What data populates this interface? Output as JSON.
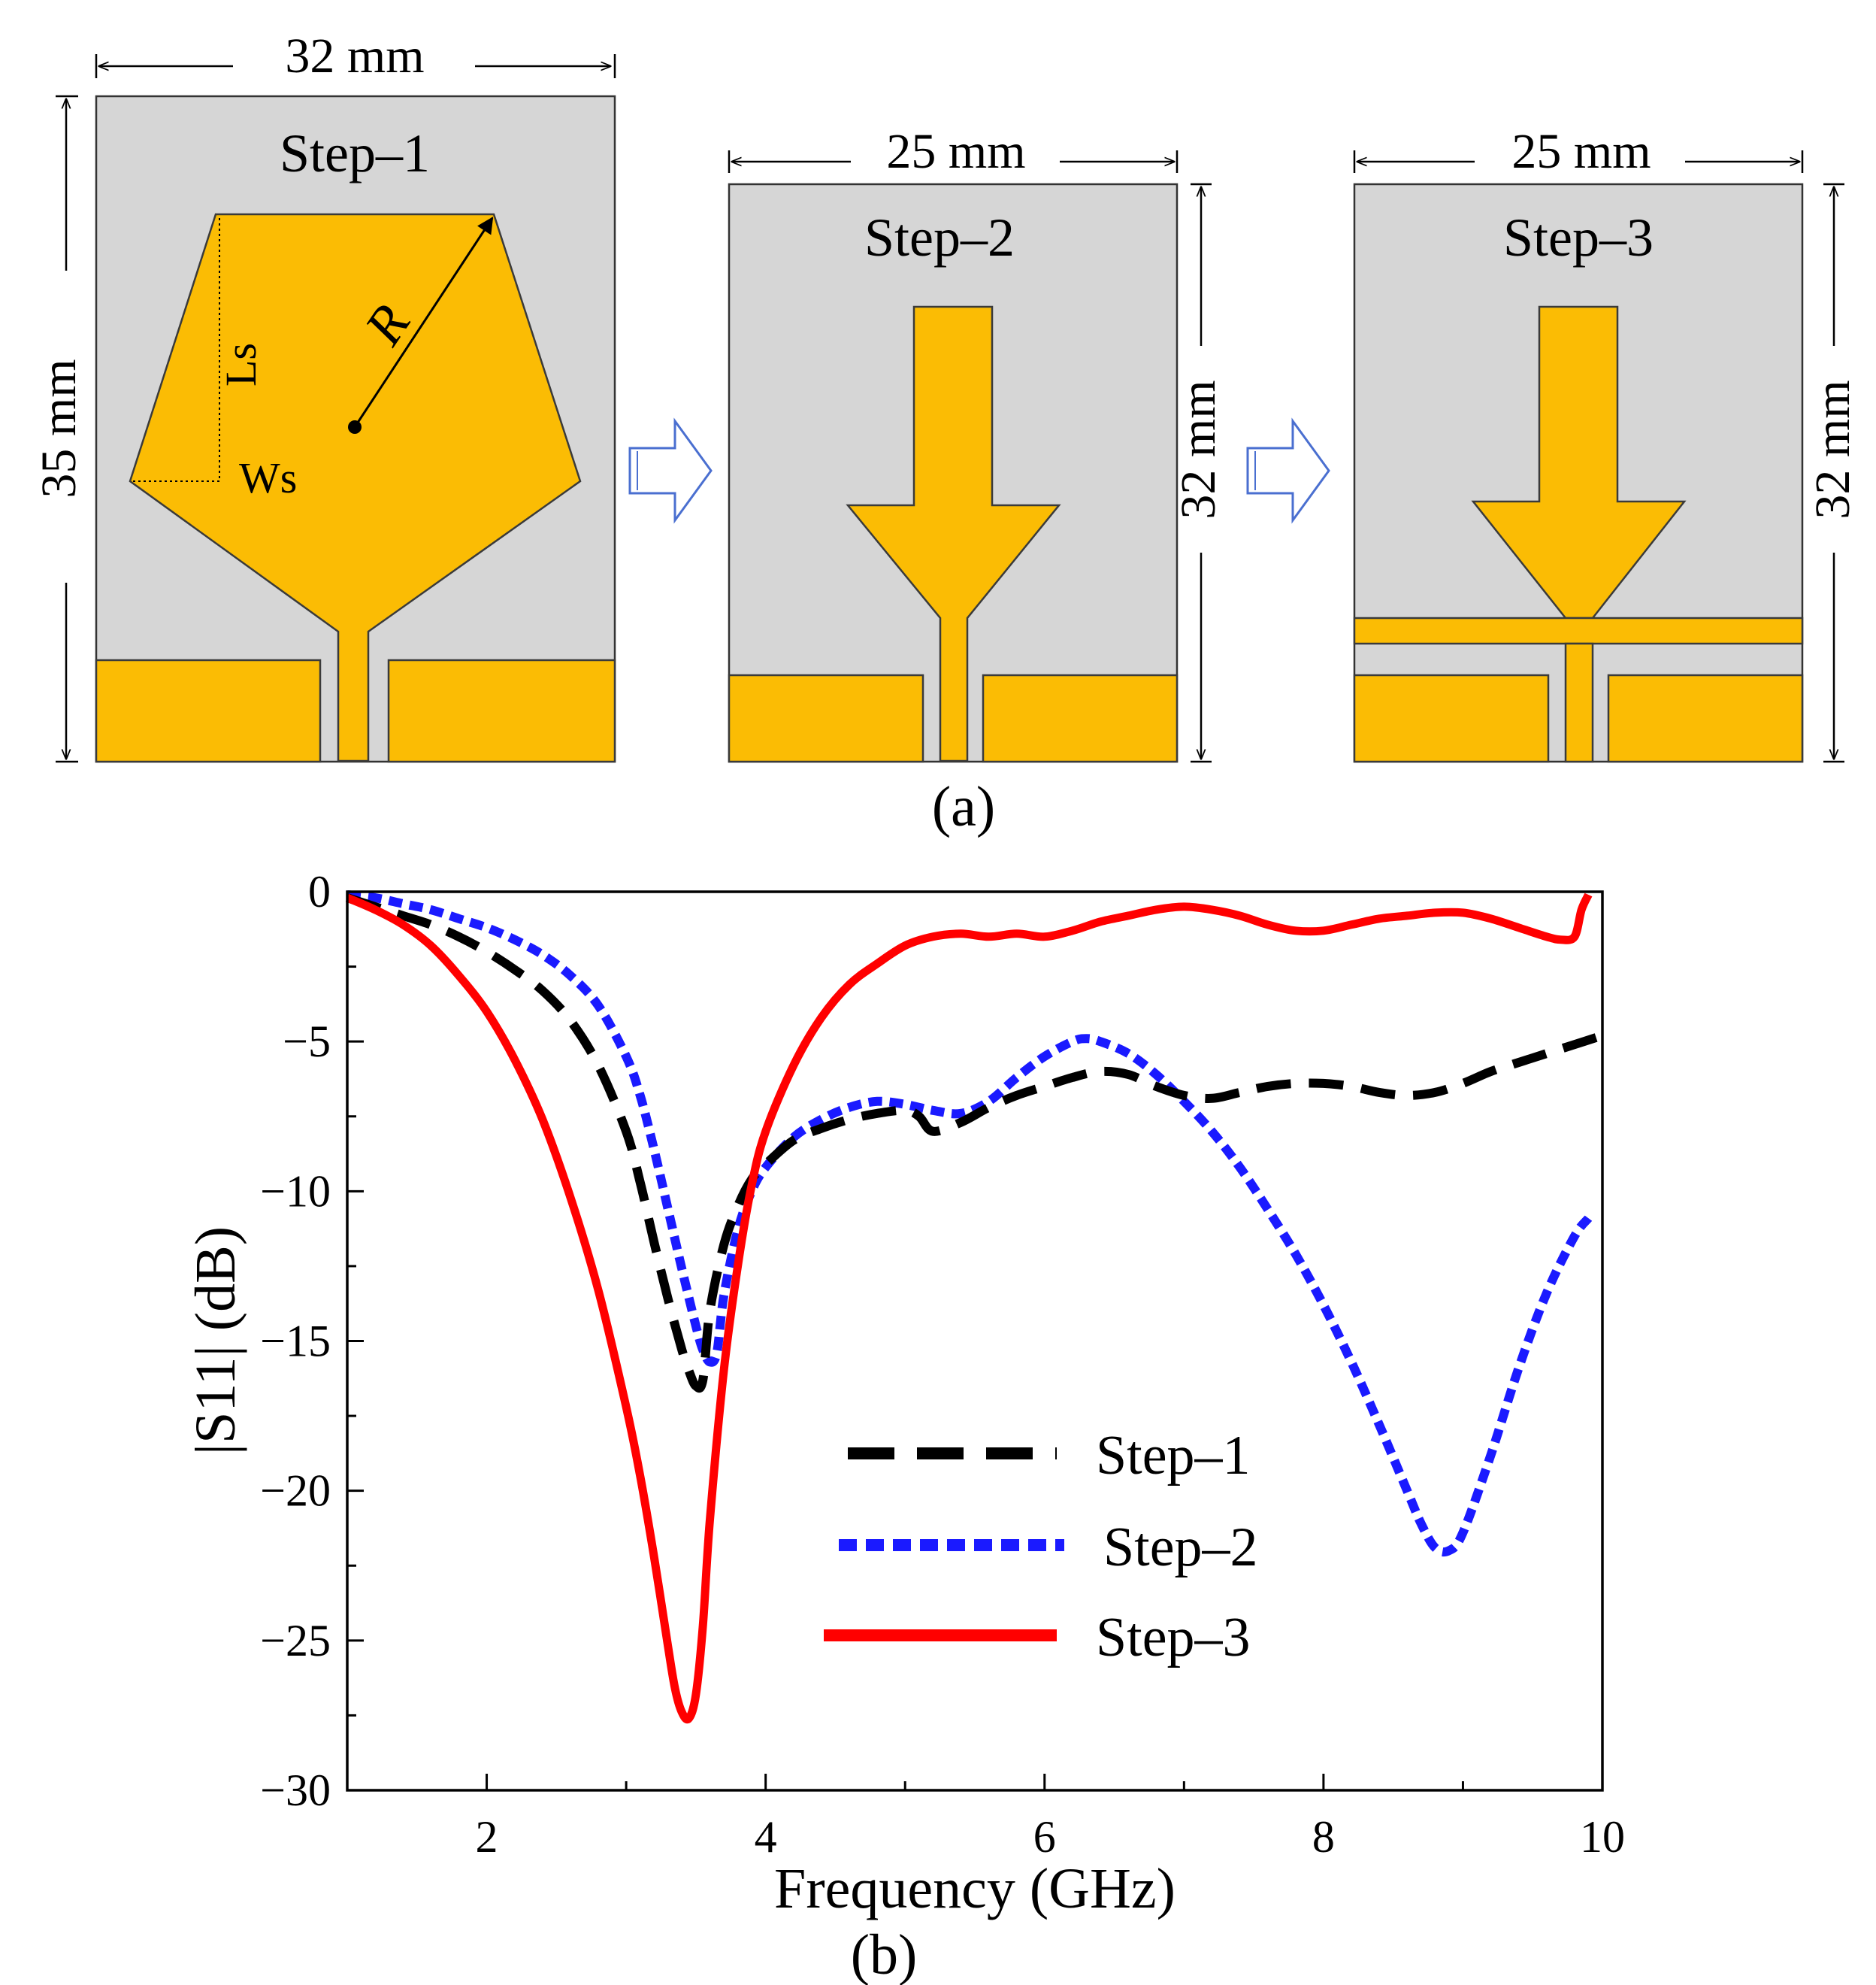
{
  "figure": {
    "caption_a": "(a)",
    "caption_b": "(b)"
  },
  "antennas": {
    "step1": {
      "label": "Step–1",
      "width_label": "32 mm",
      "height_label": "35 mm",
      "radius_label": "R",
      "ls_label": "Ls",
      "ws_label": "Ws"
    },
    "step2": {
      "label": "Step–2",
      "width_label": "25 mm",
      "height_label": "32 mm"
    },
    "step3": {
      "label": "Step–3",
      "width_label": "25 mm",
      "height_label": "32 mm"
    }
  },
  "colors": {
    "substrate": "#d6d6d6",
    "copper": "#fbbc04",
    "step1": "#000000",
    "step2": "#1a1aff",
    "step3": "#ff0000"
  },
  "chart_data": {
    "type": "line",
    "title": "",
    "xlabel": "Frequency (GHz)",
    "ylabel": "|S11| (dB)",
    "xlim": [
      1,
      10
    ],
    "ylim": [
      -30,
      0
    ],
    "xticks": [
      2,
      4,
      6,
      8,
      10
    ],
    "yticks": [
      0,
      -5,
      -10,
      -15,
      -20,
      -25,
      -30
    ],
    "xtick_labels": [
      "2",
      "4",
      "6",
      "8",
      "10"
    ],
    "ytick_labels": [
      "0",
      "−5",
      "−10",
      "−15",
      "−20",
      "−25",
      "−30"
    ],
    "legend_position": "center-right",
    "series": [
      {
        "name": "Step–1",
        "style": "dashed",
        "color": "#000000",
        "x": [
          1.0,
          1.2,
          1.4,
          1.6,
          1.8,
          2.0,
          2.2,
          2.4,
          2.6,
          2.8,
          3.0,
          3.1,
          3.2,
          3.3,
          3.4,
          3.45,
          3.5,
          3.55,
          3.6,
          3.7,
          3.8,
          3.9,
          4.0,
          4.2,
          4.4,
          4.6,
          4.8,
          5.0,
          5.1,
          5.2,
          5.4,
          5.6,
          5.8,
          6.0,
          6.2,
          6.4,
          6.6,
          6.8,
          7.0,
          7.2,
          7.4,
          7.6,
          7.8,
          8.0,
          8.2,
          8.4,
          8.6,
          8.8,
          9.0,
          9.2,
          9.4,
          9.6,
          9.8,
          10.0
        ],
        "y": [
          -0.2,
          -0.5,
          -0.8,
          -1.1,
          -1.5,
          -2.0,
          -2.6,
          -3.3,
          -4.3,
          -5.8,
          -8.0,
          -9.7,
          -11.7,
          -13.6,
          -15.3,
          -16.0,
          -16.5,
          -16.3,
          -14.0,
          -11.8,
          -10.5,
          -9.6,
          -9.1,
          -8.3,
          -7.9,
          -7.6,
          -7.4,
          -7.3,
          -7.5,
          -8.0,
          -7.7,
          -7.2,
          -6.8,
          -6.5,
          -6.2,
          -6.0,
          -6.1,
          -6.5,
          -6.8,
          -6.9,
          -6.7,
          -6.5,
          -6.4,
          -6.4,
          -6.5,
          -6.7,
          -6.8,
          -6.7,
          -6.4,
          -6.0,
          -5.7,
          -5.4,
          -5.1,
          -4.8
        ]
      },
      {
        "name": "Step–2",
        "style": "dotted",
        "color": "#1a1aff",
        "x": [
          1.0,
          1.2,
          1.4,
          1.6,
          1.8,
          2.0,
          2.2,
          2.4,
          2.6,
          2.8,
          3.0,
          3.1,
          3.2,
          3.3,
          3.4,
          3.5,
          3.55,
          3.6,
          3.65,
          3.7,
          3.8,
          3.9,
          4.0,
          4.2,
          4.4,
          4.6,
          4.8,
          5.0,
          5.2,
          5.4,
          5.6,
          5.8,
          6.0,
          6.2,
          6.3,
          6.4,
          6.6,
          6.8,
          7.0,
          7.2,
          7.4,
          7.6,
          7.8,
          8.0,
          8.2,
          8.4,
          8.6,
          8.7,
          8.8,
          8.9,
          9.0,
          9.2,
          9.4,
          9.6,
          9.8,
          9.9
        ],
        "y": [
          -0.1,
          -0.2,
          -0.4,
          -0.6,
          -0.9,
          -1.2,
          -1.6,
          -2.1,
          -2.8,
          -3.8,
          -5.5,
          -6.8,
          -8.6,
          -10.6,
          -12.6,
          -14.5,
          -15.3,
          -15.7,
          -15.4,
          -13.5,
          -11.3,
          -10.0,
          -9.2,
          -8.2,
          -7.6,
          -7.2,
          -7.0,
          -7.1,
          -7.3,
          -7.4,
          -7.0,
          -6.2,
          -5.5,
          -5.0,
          -4.9,
          -5.0,
          -5.4,
          -6.1,
          -7.0,
          -8.0,
          -9.2,
          -10.6,
          -12.1,
          -13.8,
          -15.7,
          -17.8,
          -20.0,
          -21.1,
          -21.9,
          -22.0,
          -21.4,
          -18.8,
          -15.9,
          -13.4,
          -11.5,
          -10.9
        ]
      },
      {
        "name": "Step–3",
        "style": "solid",
        "color": "#ff0000",
        "x": [
          1.0,
          1.2,
          1.4,
          1.6,
          1.8,
          2.0,
          2.2,
          2.4,
          2.6,
          2.8,
          3.0,
          3.1,
          3.2,
          3.3,
          3.35,
          3.4,
          3.45,
          3.5,
          3.55,
          3.6,
          3.7,
          3.8,
          3.9,
          4.0,
          4.2,
          4.4,
          4.6,
          4.8,
          5.0,
          5.2,
          5.4,
          5.6,
          5.8,
          6.0,
          6.2,
          6.4,
          6.6,
          6.8,
          7.0,
          7.2,
          7.4,
          7.6,
          7.8,
          8.0,
          8.2,
          8.4,
          8.6,
          8.8,
          9.0,
          9.2,
          9.4,
          9.6,
          9.7,
          9.8,
          9.85,
          9.9
        ],
        "y": [
          -0.2,
          -0.6,
          -1.1,
          -1.8,
          -2.8,
          -4.0,
          -5.6,
          -7.6,
          -10.2,
          -13.3,
          -17.2,
          -19.5,
          -22.2,
          -25.2,
          -26.6,
          -27.4,
          -27.6,
          -26.8,
          -24.5,
          -21.0,
          -16.0,
          -12.5,
          -9.8,
          -8.0,
          -5.8,
          -4.2,
          -3.1,
          -2.4,
          -1.8,
          -1.5,
          -1.4,
          -1.5,
          -1.4,
          -1.5,
          -1.3,
          -1.0,
          -0.8,
          -0.6,
          -0.5,
          -0.6,
          -0.8,
          -1.1,
          -1.3,
          -1.3,
          -1.1,
          -0.9,
          -0.8,
          -0.7,
          -0.7,
          -0.9,
          -1.2,
          -1.5,
          -1.6,
          -1.5,
          -0.6,
          -0.1
        ]
      }
    ]
  }
}
